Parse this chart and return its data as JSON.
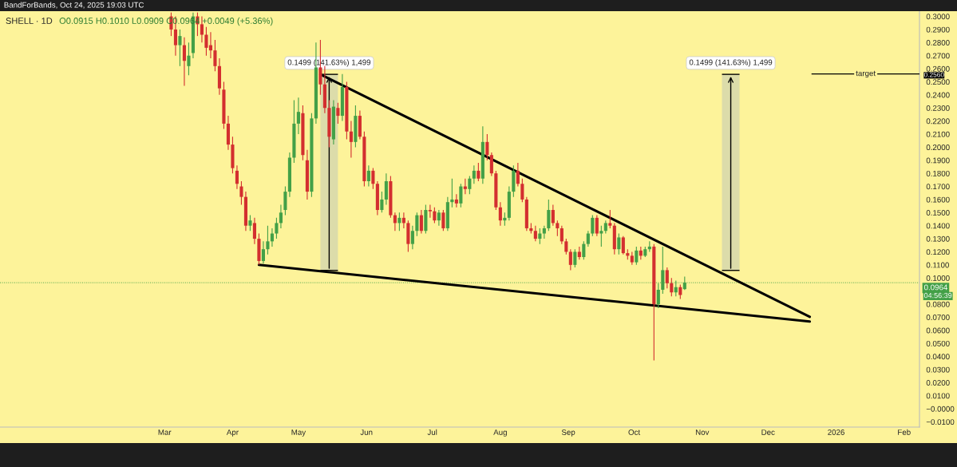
{
  "chart_data": {
    "type": "candlestick",
    "title": "SHELL · 1D",
    "subtitle": "O0.0915 H0.1010 L0.0909 C0.0964 +0.0049 (+5.36%)",
    "annotations": [
      "BandForBands, Oct 24, 2025 19:03 UTC",
      "04:56:39"
    ],
    "colors": [
      "#d32f2f",
      "#d32f2f",
      "#43a047",
      "#d32f2f",
      "#43a047",
      "#43a047",
      "#d32f2f",
      "#d32f2f",
      "#d32f2f",
      "#d32f2f",
      "#d32f2f",
      "#d32f2f",
      "#d32f2f",
      "#d32f2f",
      "#d32f2f",
      "#d32f2f",
      "#d32f2f",
      "#d32f2f",
      "#43a047",
      "#d32f2f",
      "#d32f2f",
      "#43a047",
      "#43a047",
      "#43a047",
      "#43a047",
      "#43a047",
      "#43a047",
      "#43a047",
      "#43a047",
      "#43a047",
      "#d32f2f",
      "#d32f2f",
      "#43a047",
      "#43a047",
      "#d32f2f",
      "#d32f2f",
      "#d32f2f",
      "#43a047",
      "#d32f2f",
      "#43a047",
      "#d32f2f",
      "#d32f2f",
      "#43a047",
      "#d32f2f",
      "#d32f2f",
      "#43a047",
      "#d32f2f",
      "#d32f2f",
      "#43a047",
      "#43a047",
      "#d32f2f",
      "#d32f2f",
      "#43a047",
      "#d32f2f",
      "#d32f2f",
      "#43a047",
      "#43a047",
      "#d32f2f",
      "#43a047",
      "#d32f2f",
      "#d32f2f",
      "#43a047",
      "#d32f2f",
      "#43a047",
      "#43a047",
      "#d32f2f",
      "#43a047",
      "#d32f2f",
      "#43a047",
      "#43a047",
      "#d32f2f",
      "#43a047",
      "#d32f2f",
      "#d32f2f",
      "#d32f2f",
      "#d32f2f",
      "#43a047",
      "#43a047",
      "#43a047",
      "#d32f2f",
      "#d32f2f",
      "#d32f2f",
      "#d32f2f",
      "#d32f2f",
      "#43a047",
      "#43a047",
      "#43a047",
      "#d32f2f",
      "#d32f2f",
      "#d32f2f",
      "#d32f2f",
      "#d32f2f",
      "#43a047",
      "#d32f2f",
      "#43a047",
      "#43a047",
      "#43a047",
      "#d32f2f",
      "#43a047",
      "#43a047",
      "#d32f2f",
      "#d32f2f",
      "#43a047",
      "#d32f2f",
      "#d32f2f",
      "#d32f2f",
      "#43a047",
      "#d32f2f",
      "#43a047",
      "#43a047",
      "#d32f2f",
      "#43a047",
      "#43a047",
      "#d32f2f",
      "#d32f2f",
      "#43a047",
      "#d32f2f",
      "#43a047"
    ],
    "x": [
      "2025-03-04",
      "2025-03-06",
      "2025-03-08",
      "2025-03-10",
      "2025-03-12",
      "2025-03-14",
      "2025-03-16",
      "2025-03-18",
      "2025-03-20",
      "2025-03-22",
      "2025-03-24",
      "2025-03-26",
      "2025-03-28",
      "2025-03-30",
      "2025-04-01",
      "2025-04-03",
      "2025-04-05",
      "2025-04-07",
      "2025-04-09",
      "2025-04-11",
      "2025-04-13",
      "2025-04-15",
      "2025-04-17",
      "2025-04-19",
      "2025-04-21",
      "2025-04-23",
      "2025-04-25",
      "2025-04-27",
      "2025-04-29",
      "2025-05-01",
      "2025-05-03",
      "2025-05-05",
      "2025-05-07",
      "2025-05-09",
      "2025-05-11",
      "2025-05-13",
      "2025-05-15",
      "2025-05-17",
      "2025-05-19",
      "2025-05-21",
      "2025-05-23",
      "2025-05-25",
      "2025-05-27",
      "2025-05-29",
      "2025-05-31",
      "2025-06-02",
      "2025-06-04",
      "2025-06-06",
      "2025-06-08",
      "2025-06-10",
      "2025-06-12",
      "2025-06-14",
      "2025-06-16",
      "2025-06-18",
      "2025-06-20",
      "2025-06-22",
      "2025-06-24",
      "2025-06-26",
      "2025-06-28",
      "2025-06-30",
      "2025-07-02",
      "2025-07-04",
      "2025-07-06",
      "2025-07-08",
      "2025-07-10",
      "2025-07-12",
      "2025-07-14",
      "2025-07-16",
      "2025-07-18",
      "2025-07-20",
      "2025-07-22",
      "2025-07-24",
      "2025-07-26",
      "2025-07-28",
      "2025-07-30",
      "2025-08-01",
      "2025-08-03",
      "2025-08-05",
      "2025-08-07",
      "2025-08-09",
      "2025-08-11",
      "2025-08-13",
      "2025-08-15",
      "2025-08-17",
      "2025-08-19",
      "2025-08-21",
      "2025-08-23",
      "2025-08-25",
      "2025-08-27",
      "2025-08-29",
      "2025-08-31",
      "2025-09-02",
      "2025-09-04",
      "2025-09-06",
      "2025-09-08",
      "2025-09-10",
      "2025-09-12",
      "2025-09-14",
      "2025-09-16",
      "2025-09-18",
      "2025-09-20",
      "2025-09-22",
      "2025-09-24",
      "2025-09-26",
      "2025-09-28",
      "2025-09-30",
      "2025-10-02",
      "2025-10-04",
      "2025-10-06",
      "2025-10-08",
      "2025-10-10",
      "2025-10-12",
      "2025-10-14",
      "2025-10-16",
      "2025-10-18",
      "2025-10-20",
      "2025-10-22",
      "2025-10-24"
    ],
    "ohlc": [
      [
        0.3,
        0.303,
        0.285,
        0.29
      ],
      [
        0.29,
        0.3,
        0.27,
        0.278
      ],
      [
        0.278,
        0.29,
        0.262,
        0.285
      ],
      [
        0.278,
        0.284,
        0.247,
        0.266
      ],
      [
        0.262,
        0.28,
        0.255,
        0.27
      ],
      [
        0.272,
        0.303,
        0.268,
        0.3
      ],
      [
        0.3,
        0.303,
        0.285,
        0.294
      ],
      [
        0.294,
        0.3,
        0.28,
        0.286
      ],
      [
        0.286,
        0.292,
        0.27,
        0.276
      ],
      [
        0.278,
        0.288,
        0.268,
        0.274
      ],
      [
        0.274,
        0.282,
        0.258,
        0.262
      ],
      [
        0.262,
        0.268,
        0.24,
        0.245
      ],
      [
        0.244,
        0.25,
        0.214,
        0.218
      ],
      [
        0.218,
        0.224,
        0.198,
        0.202
      ],
      [
        0.202,
        0.208,
        0.18,
        0.184
      ],
      [
        0.182,
        0.186,
        0.168,
        0.172
      ],
      [
        0.17,
        0.174,
        0.156,
        0.162
      ],
      [
        0.162,
        0.166,
        0.136,
        0.14
      ],
      [
        0.14,
        0.148,
        0.136,
        0.144
      ],
      [
        0.142,
        0.146,
        0.126,
        0.13
      ],
      [
        0.13,
        0.134,
        0.11,
        0.113
      ],
      [
        0.113,
        0.128,
        0.111,
        0.122
      ],
      [
        0.122,
        0.14,
        0.118,
        0.128
      ],
      [
        0.128,
        0.138,
        0.124,
        0.134
      ],
      [
        0.134,
        0.146,
        0.13,
        0.142
      ],
      [
        0.142,
        0.156,
        0.138,
        0.15
      ],
      [
        0.152,
        0.17,
        0.148,
        0.166
      ],
      [
        0.166,
        0.196,
        0.162,
        0.192
      ],
      [
        0.192,
        0.236,
        0.188,
        0.218
      ],
      [
        0.218,
        0.238,
        0.21,
        0.227
      ],
      [
        0.226,
        0.232,
        0.19,
        0.194
      ],
      [
        0.19,
        0.198,
        0.16,
        0.166
      ],
      [
        0.166,
        0.226,
        0.162,
        0.222
      ],
      [
        0.222,
        0.28,
        0.218,
        0.261
      ],
      [
        0.261,
        0.282,
        0.24,
        0.248
      ],
      [
        0.248,
        0.262,
        0.226,
        0.23
      ],
      [
        0.23,
        0.236,
        0.2,
        0.208
      ],
      [
        0.206,
        0.236,
        0.202,
        0.231
      ],
      [
        0.23,
        0.234,
        0.218,
        0.224
      ],
      [
        0.224,
        0.256,
        0.22,
        0.246
      ],
      [
        0.246,
        0.25,
        0.206,
        0.212
      ],
      [
        0.212,
        0.22,
        0.192,
        0.204
      ],
      [
        0.204,
        0.232,
        0.2,
        0.224
      ],
      [
        0.224,
        0.228,
        0.206,
        0.208
      ],
      [
        0.208,
        0.212,
        0.17,
        0.174
      ],
      [
        0.174,
        0.186,
        0.17,
        0.182
      ],
      [
        0.182,
        0.184,
        0.168,
        0.172
      ],
      [
        0.172,
        0.174,
        0.148,
        0.152
      ],
      [
        0.152,
        0.166,
        0.15,
        0.16
      ],
      [
        0.16,
        0.18,
        0.156,
        0.174
      ],
      [
        0.174,
        0.178,
        0.146,
        0.148
      ],
      [
        0.148,
        0.15,
        0.136,
        0.142
      ],
      [
        0.142,
        0.15,
        0.136,
        0.146
      ],
      [
        0.146,
        0.15,
        0.138,
        0.142
      ],
      [
        0.142,
        0.144,
        0.12,
        0.126
      ],
      [
        0.126,
        0.14,
        0.122,
        0.136
      ],
      [
        0.136,
        0.15,
        0.132,
        0.148
      ],
      [
        0.148,
        0.152,
        0.134,
        0.136
      ],
      [
        0.136,
        0.156,
        0.134,
        0.152
      ],
      [
        0.152,
        0.156,
        0.146,
        0.151
      ],
      [
        0.151,
        0.154,
        0.142,
        0.144
      ],
      [
        0.144,
        0.152,
        0.14,
        0.15
      ],
      [
        0.15,
        0.152,
        0.136,
        0.138
      ],
      [
        0.138,
        0.162,
        0.136,
        0.158
      ],
      [
        0.158,
        0.176,
        0.154,
        0.16
      ],
      [
        0.16,
        0.164,
        0.154,
        0.157
      ],
      [
        0.157,
        0.172,
        0.154,
        0.17
      ],
      [
        0.17,
        0.176,
        0.164,
        0.168
      ],
      [
        0.168,
        0.178,
        0.164,
        0.176
      ],
      [
        0.176,
        0.186,
        0.172,
        0.182
      ],
      [
        0.182,
        0.188,
        0.174,
        0.176
      ],
      [
        0.176,
        0.216,
        0.172,
        0.204
      ],
      [
        0.204,
        0.21,
        0.19,
        0.194
      ],
      [
        0.194,
        0.196,
        0.178,
        0.18
      ],
      [
        0.18,
        0.182,
        0.152,
        0.154
      ],
      [
        0.154,
        0.158,
        0.14,
        0.144
      ],
      [
        0.144,
        0.15,
        0.14,
        0.146
      ],
      [
        0.146,
        0.17,
        0.144,
        0.166
      ],
      [
        0.166,
        0.186,
        0.162,
        0.182
      ],
      [
        0.182,
        0.188,
        0.17,
        0.172
      ],
      [
        0.172,
        0.176,
        0.158,
        0.16
      ],
      [
        0.16,
        0.162,
        0.136,
        0.138
      ],
      [
        0.138,
        0.142,
        0.134,
        0.136
      ],
      [
        0.136,
        0.14,
        0.128,
        0.13
      ],
      [
        0.13,
        0.138,
        0.126,
        0.134
      ],
      [
        0.134,
        0.14,
        0.13,
        0.138
      ],
      [
        0.138,
        0.16,
        0.136,
        0.152
      ],
      [
        0.152,
        0.156,
        0.14,
        0.142
      ],
      [
        0.142,
        0.144,
        0.132,
        0.138
      ],
      [
        0.138,
        0.14,
        0.126,
        0.128
      ],
      [
        0.128,
        0.13,
        0.118,
        0.12
      ],
      [
        0.12,
        0.122,
        0.106,
        0.11
      ],
      [
        0.11,
        0.122,
        0.108,
        0.12
      ],
      [
        0.12,
        0.124,
        0.114,
        0.116
      ],
      [
        0.116,
        0.128,
        0.114,
        0.126
      ],
      [
        0.126,
        0.136,
        0.124,
        0.134
      ],
      [
        0.134,
        0.148,
        0.132,
        0.146
      ],
      [
        0.146,
        0.148,
        0.132,
        0.134
      ],
      [
        0.134,
        0.14,
        0.124,
        0.136
      ],
      [
        0.136,
        0.144,
        0.134,
        0.142
      ],
      [
        0.142,
        0.152,
        0.138,
        0.14
      ],
      [
        0.14,
        0.142,
        0.118,
        0.122
      ],
      [
        0.122,
        0.134,
        0.118,
        0.131
      ],
      [
        0.131,
        0.132,
        0.118,
        0.119
      ],
      [
        0.119,
        0.122,
        0.114,
        0.117
      ],
      [
        0.117,
        0.12,
        0.11,
        0.112
      ],
      [
        0.112,
        0.124,
        0.11,
        0.121
      ],
      [
        0.121,
        0.124,
        0.114,
        0.117
      ],
      [
        0.117,
        0.124,
        0.116,
        0.122
      ],
      [
        0.122,
        0.128,
        0.12,
        0.124
      ],
      [
        0.124,
        0.126,
        0.037,
        0.08
      ],
      [
        0.08,
        0.096,
        0.077,
        0.091
      ],
      [
        0.091,
        0.124,
        0.088,
        0.106
      ],
      [
        0.106,
        0.108,
        0.092,
        0.096
      ],
      [
        0.096,
        0.1,
        0.086,
        0.089
      ],
      [
        0.089,
        0.098,
        0.086,
        0.093
      ],
      [
        0.093,
        0.095,
        0.084,
        0.087
      ],
      [
        0.0915,
        0.101,
        0.0909,
        0.0964
      ]
    ],
    "series": [
      {
        "type": "bar",
        "color": "#dcdcaa",
        "x": [
          "2025-05-15",
          "2025-11-14"
        ],
        "base": [
          0.1058,
          0.1058
        ],
        "values": [
          0.1499,
          0.1499
        ],
        "value_labels": [
          "0.1499 (141.63%) 1,499",
          "0.1499 (141.63%) 1,499"
        ]
      },
      {
        "type": "line",
        "color": "#000000",
        "x": [
          "2025-05-11",
          "2025-12-20"
        ],
        "values": [
          0.2557,
          0.0703
        ]
      },
      {
        "type": "line",
        "color": "#000000",
        "x": [
          "2025-04-13",
          "2025-12-20"
        ],
        "values": [
          0.11,
          0.0667
        ]
      },
      {
        "type": "line",
        "name": "target",
        "color": "#000000",
        "x": [
          "2025-12-21",
          "2026-02-08"
        ],
        "values": [
          0.256,
          0.256
        ],
        "value_labels": [
          null,
          "0.2560"
        ]
      }
    ],
    "ref_lines": [
      {
        "axis": "y",
        "value": 0.0964,
        "label": "0.0964",
        "color": "#43a047",
        "line_style": "dotted"
      }
    ],
    "xlim": [
      "2024-12-16",
      "2026-02-08"
    ],
    "xticks": [
      {
        "value": "2025-03-01",
        "label": "Mar"
      },
      {
        "value": "2025-04-01",
        "label": "Apr"
      },
      {
        "value": "2025-05-01",
        "label": "May"
      },
      {
        "value": "2025-06-01",
        "label": "Jun"
      },
      {
        "value": "2025-07-01",
        "label": "Jul"
      },
      {
        "value": "2025-08-01",
        "label": "Aug"
      },
      {
        "value": "2025-09-01",
        "label": "Sep"
      },
      {
        "value": "2025-10-01",
        "label": "Oct"
      },
      {
        "value": "2025-11-01",
        "label": "Nov"
      },
      {
        "value": "2025-12-01",
        "label": "Dec"
      },
      {
        "value": "2026-01-01",
        "label": "2026"
      },
      {
        "value": "2026-02-01",
        "label": "Feb"
      }
    ],
    "ylim": [
      -0.014,
      0.304
    ],
    "yticks": [
      {
        "value": -0.01,
        "label": "−0.0100"
      },
      {
        "value": 0,
        "label": "−0.0000"
      },
      {
        "value": 0.01,
        "label": "0.0100"
      },
      {
        "value": 0.02,
        "label": "0.0200"
      },
      {
        "value": 0.03,
        "label": "0.0300"
      },
      {
        "value": 0.04,
        "label": "0.0400"
      },
      {
        "value": 0.05,
        "label": "0.0500"
      },
      {
        "value": 0.06,
        "label": "0.0600"
      },
      {
        "value": 0.07,
        "label": "0.0700"
      },
      {
        "value": 0.08,
        "label": "0.0800"
      },
      {
        "value": 0.1,
        "label": "0.1000"
      },
      {
        "value": 0.11,
        "label": "0.1100"
      },
      {
        "value": 0.12,
        "label": "0.1200"
      },
      {
        "value": 0.13,
        "label": "0.1300"
      },
      {
        "value": 0.14,
        "label": "0.1400"
      },
      {
        "value": 0.15,
        "label": "0.1500"
      },
      {
        "value": 0.16,
        "label": "0.1600"
      },
      {
        "value": 0.17,
        "label": "0.1700"
      },
      {
        "value": 0.18,
        "label": "0.1800"
      },
      {
        "value": 0.19,
        "label": "0.1900"
      },
      {
        "value": 0.2,
        "label": "0.2000"
      },
      {
        "value": 0.21,
        "label": "0.2100"
      },
      {
        "value": 0.22,
        "label": "0.2200"
      },
      {
        "value": 0.23,
        "label": "0.2300"
      },
      {
        "value": 0.24,
        "label": "0.2400"
      },
      {
        "value": 0.25,
        "label": "0.2500"
      },
      {
        "value": 0.26,
        "label": "0.2600"
      },
      {
        "value": 0.27,
        "label": "0.2700"
      },
      {
        "value": 0.28,
        "label": "0.2800"
      },
      {
        "value": 0.29,
        "label": "0.2900"
      },
      {
        "value": 0.3,
        "label": "0.3000"
      }
    ]
  }
}
